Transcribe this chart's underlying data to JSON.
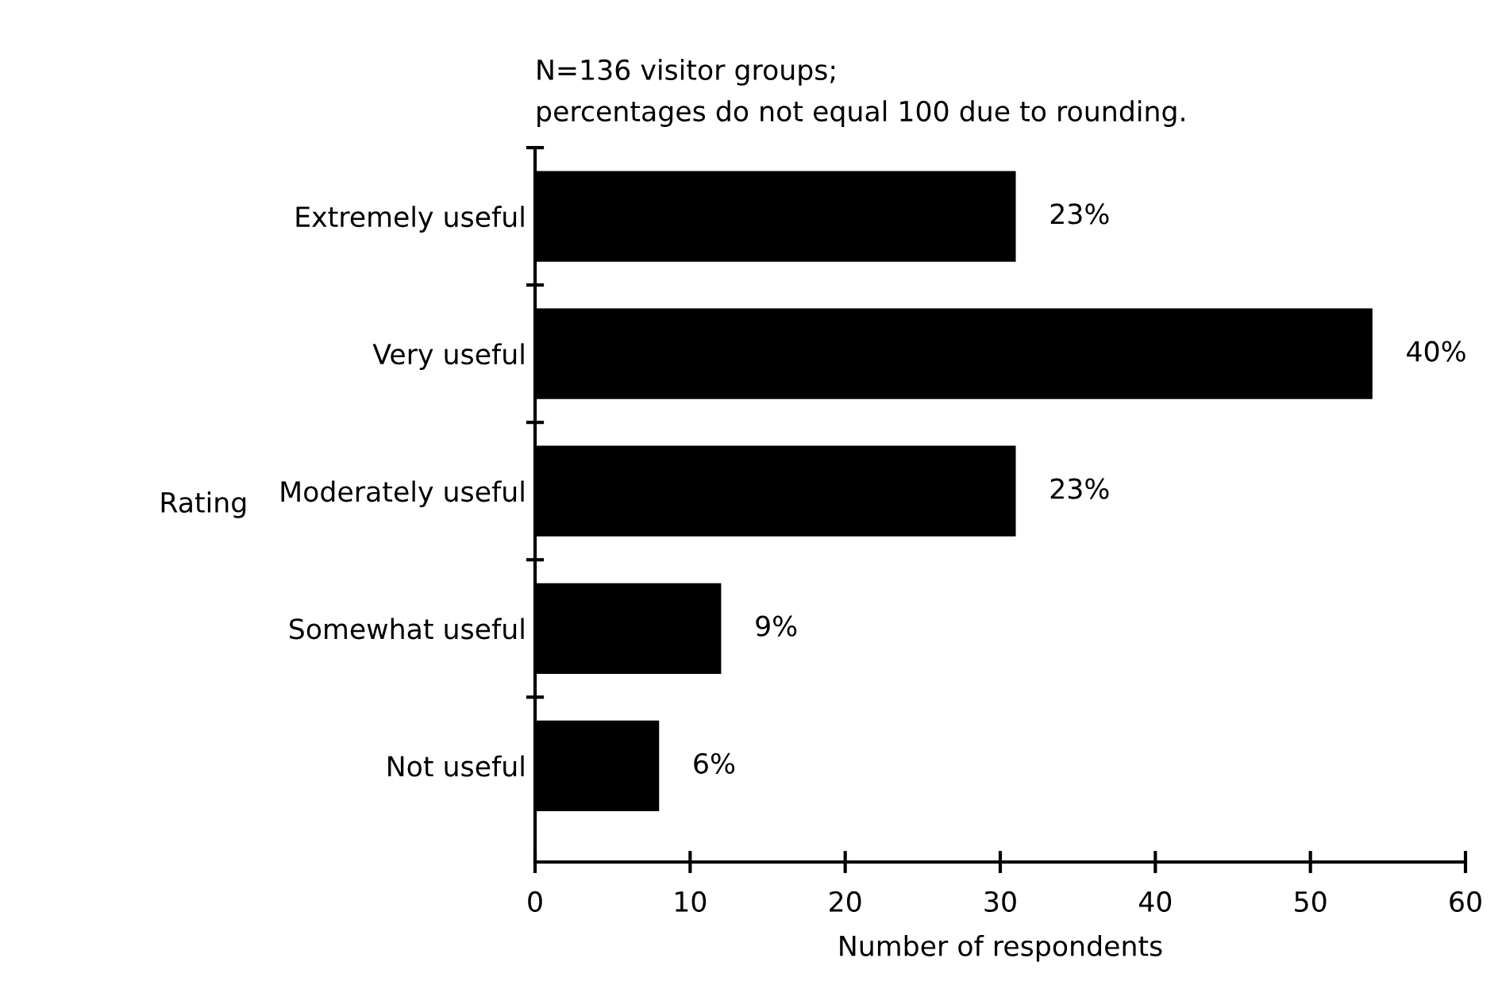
{
  "chart_data": {
    "type": "bar",
    "orientation": "horizontal",
    "title": "N=136 visitor groups;\npercentages do not equal 100 due to rounding.",
    "xlabel": "Number of respondents",
    "ylabel": "Rating",
    "categories": [
      "Extremely useful",
      "Very useful",
      "Moderately useful",
      "Somewhat useful",
      "Not useful"
    ],
    "values": [
      31,
      54,
      31,
      12,
      8
    ],
    "annotations": [
      {
        "text": "23%",
        "x": 31,
        "y": "Extremely useful"
      },
      {
        "text": "40%",
        "x": 54,
        "y": "Very useful"
      },
      {
        "text": "23%",
        "x": 31,
        "y": "Moderately useful"
      },
      {
        "text": "9%",
        "x": 12,
        "y": "Somewhat useful"
      },
      {
        "text": "6%",
        "x": 8,
        "y": "Not useful"
      }
    ],
    "color": "#000000",
    "xlim": [
      0,
      60
    ],
    "xticks": [
      0,
      10,
      20,
      30,
      40,
      50,
      60
    ],
    "grid": false,
    "legend": false
  }
}
